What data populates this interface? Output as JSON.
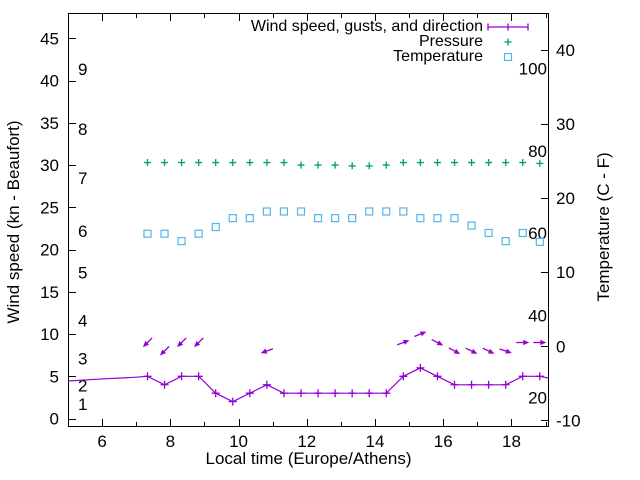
{
  "chart_data": {
    "type": "line",
    "title": "",
    "xlabel": "Local time (Europe/Athens)",
    "ylabel_left": "Wind speed (kn - Beaufort)",
    "ylabel_right": "Temperature (C - F)",
    "x_range": [
      5,
      19.1
    ],
    "kn_range": [
      -1,
      48
    ],
    "c_range": [
      -10.9,
      45
    ],
    "x_major_ticks": [
      6,
      8,
      10,
      12,
      14,
      16,
      18
    ],
    "x_minor_ticks": [
      7,
      9,
      11,
      13,
      15,
      17,
      19
    ],
    "kn_ticks": [
      0,
      5,
      10,
      15,
      20,
      25,
      30,
      35,
      40,
      45
    ],
    "beaufort_labels": [
      {
        "bft": "1",
        "kn": 1.7
      },
      {
        "bft": "2",
        "kn": 3.9
      },
      {
        "bft": "3",
        "kn": 7.1
      },
      {
        "bft": "4",
        "kn": 11.6
      },
      {
        "bft": "5",
        "kn": 17.3
      },
      {
        "bft": "6",
        "kn": 22.2
      },
      {
        "bft": "7",
        "kn": 28.5
      },
      {
        "bft": "8",
        "kn": 34.3
      },
      {
        "bft": "9",
        "kn": 41.4
      }
    ],
    "c_ticks": [
      -10,
      0,
      10,
      20,
      30,
      40
    ],
    "f_labels": [
      20,
      40,
      60,
      80,
      100
    ],
    "legend": [
      {
        "label": "Wind speed, gusts, and direction",
        "series": "wind",
        "marker": "line-with-plus"
      },
      {
        "label": "Pressure",
        "series": "pressure",
        "marker": "plus"
      },
      {
        "label": "Temperature",
        "series": "temperature",
        "marker": "open-square"
      }
    ],
    "times": [
      7.33,
      7.83,
      8.33,
      8.83,
      9.33,
      9.83,
      10.33,
      10.83,
      11.33,
      11.83,
      12.33,
      12.83,
      13.33,
      13.83,
      14.33,
      14.83,
      15.33,
      15.83,
      16.33,
      16.83,
      17.33,
      17.83,
      18.33,
      18.83
    ],
    "wind_speed_kn": [
      5,
      4,
      5,
      5,
      3,
      2,
      3,
      4,
      3,
      3,
      3,
      3,
      3,
      3,
      3,
      5,
      6,
      5,
      4,
      4,
      4,
      4,
      5,
      5
    ],
    "wind_line_lead": [
      [
        5.0,
        4.45
      ],
      [
        5.8,
        4.65
      ],
      [
        7.0,
        4.9
      ]
    ],
    "wind_line_tail": [
      [
        19.08,
        4.8
      ]
    ],
    "gusts": [
      {
        "t": 7.33,
        "kn": 9,
        "dir_deg": 225,
        "toward": "SW"
      },
      {
        "t": 7.83,
        "kn": 8,
        "dir_deg": 225,
        "toward": "SW"
      },
      {
        "t": 8.33,
        "kn": 9,
        "dir_deg": 225,
        "toward": "SW"
      },
      {
        "t": 8.83,
        "kn": 9,
        "dir_deg": 225,
        "toward": "SW"
      },
      {
        "t": 10.83,
        "kn": 8,
        "dir_deg": 200,
        "toward": "WSW"
      },
      {
        "t": 14.83,
        "kn": 9,
        "dir_deg": 20,
        "toward": "ENE"
      },
      {
        "t": 15.33,
        "kn": 10,
        "dir_deg": 22,
        "toward": "ENE"
      },
      {
        "t": 15.83,
        "kn": 9,
        "dir_deg": -27,
        "toward": "ESE"
      },
      {
        "t": 16.33,
        "kn": 8,
        "dir_deg": -28,
        "toward": "ESE"
      },
      {
        "t": 16.83,
        "kn": 8,
        "dir_deg": -25,
        "toward": "ESE"
      },
      {
        "t": 17.33,
        "kn": 8,
        "dir_deg": -25,
        "toward": "ESE"
      },
      {
        "t": 17.83,
        "kn": 8,
        "dir_deg": -18,
        "toward": "ESE"
      },
      {
        "t": 18.33,
        "kn": 9,
        "dir_deg": 0,
        "toward": "E"
      },
      {
        "t": 18.83,
        "kn": 9,
        "dir_deg": 0,
        "toward": "E"
      }
    ],
    "pressure_kn_axis": [
      30.3,
      30.3,
      30.3,
      30.3,
      30.3,
      30.3,
      30.3,
      30.3,
      30.3,
      30.0,
      30.0,
      30.0,
      29.9,
      29.9,
      30.0,
      30.3,
      30.3,
      30.3,
      30.3,
      30.3,
      30.3,
      30.3,
      30.3,
      30.2
    ],
    "temperature_c": [
      15.2,
      15.2,
      14.2,
      15.2,
      16.1,
      17.3,
      17.3,
      18.2,
      18.2,
      18.2,
      17.3,
      17.3,
      17.3,
      18.2,
      18.2,
      18.2,
      17.3,
      17.3,
      17.3,
      16.3,
      15.3,
      14.2,
      15.3,
      14.1
    ],
    "colors": {
      "wind": "#9400d3",
      "pressure": "#009e73",
      "temperature": "#56b4e9",
      "axis": "#000000",
      "background": "#ffffff"
    }
  }
}
